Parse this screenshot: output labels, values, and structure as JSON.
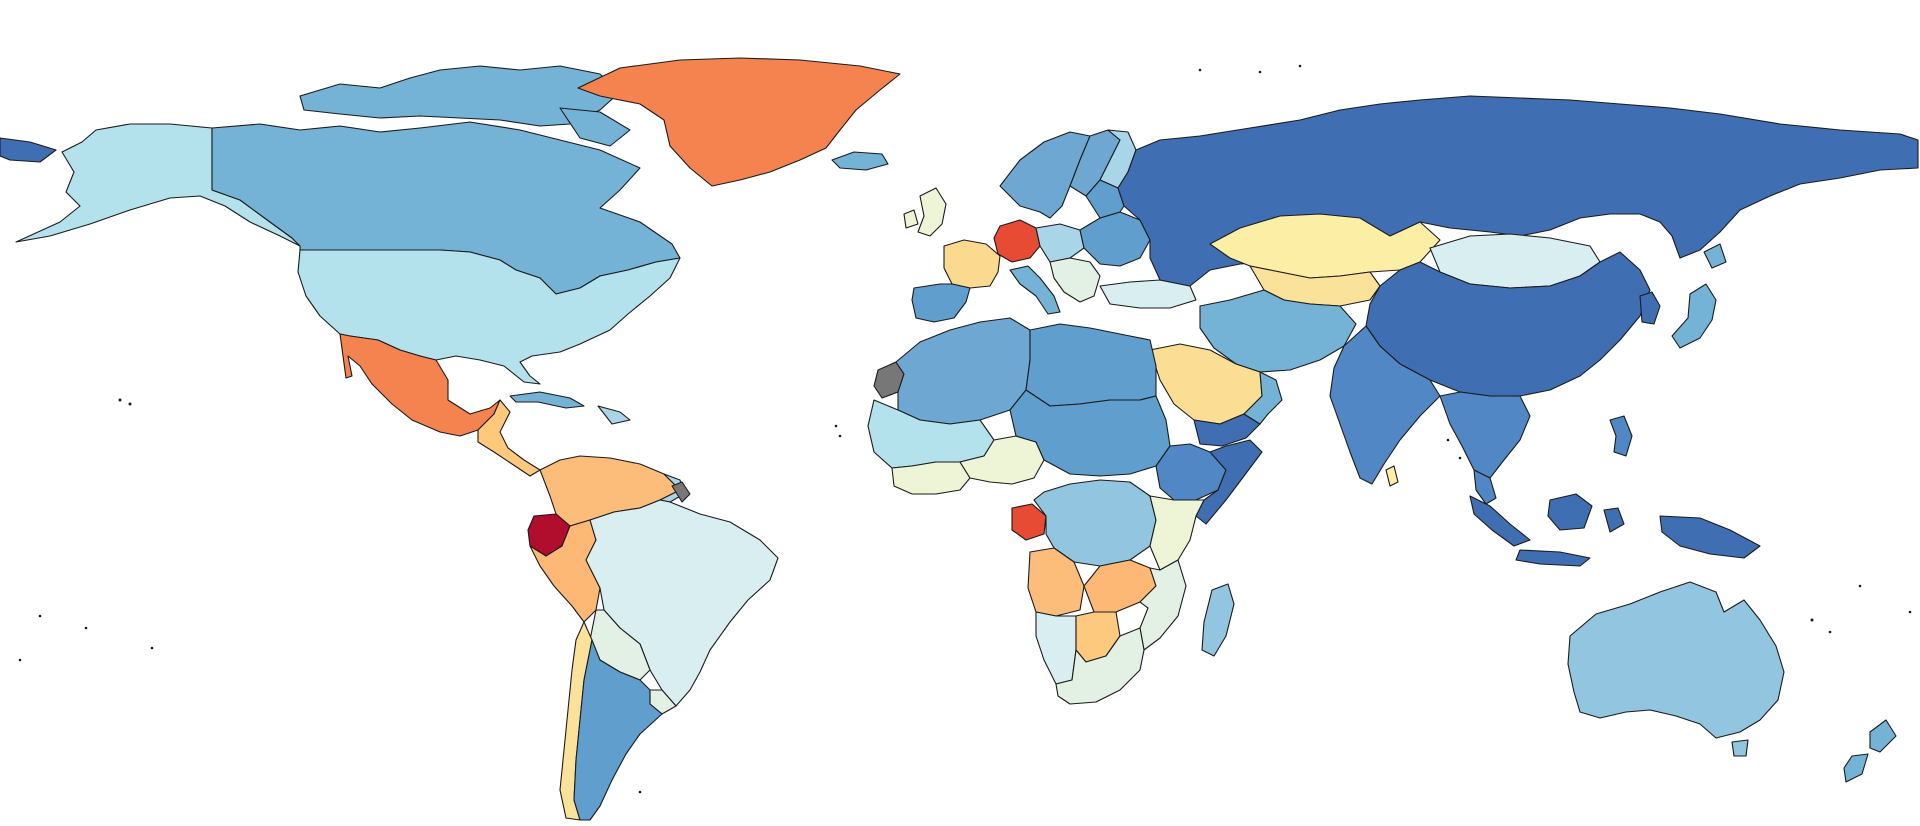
{
  "map": {
    "regions": [
      {
        "name": "alaska",
        "color": "#b3e2ec"
      },
      {
        "name": "canada",
        "color": "#74b3d6"
      },
      {
        "name": "arctic-islands",
        "color": "#74b3d6"
      },
      {
        "name": "greenland",
        "color": "#f4834f"
      },
      {
        "name": "united-states",
        "color": "#b3e2ec"
      },
      {
        "name": "mexico",
        "color": "#f4834f"
      },
      {
        "name": "central-america",
        "color": "#fec97b"
      },
      {
        "name": "cuba",
        "color": "#74b3d6"
      },
      {
        "name": "colombia-venezuela",
        "color": "#fdbd7a"
      },
      {
        "name": "guyana-suriname",
        "color": "#a8d5e8"
      },
      {
        "name": "ecuador",
        "color": "#b10d2c"
      },
      {
        "name": "peru",
        "color": "#fdb876"
      },
      {
        "name": "brazil",
        "color": "#d8eef0"
      },
      {
        "name": "bolivia-paraguay",
        "color": "#e2f1e4"
      },
      {
        "name": "chile",
        "color": "#fbe29a"
      },
      {
        "name": "argentina",
        "color": "#5f9ecd"
      },
      {
        "name": "uruguay",
        "color": "#e2f1e4"
      },
      {
        "name": "iceland",
        "color": "#74b3d6"
      },
      {
        "name": "scandinavia",
        "color": "#6ea8d2"
      },
      {
        "name": "finland",
        "color": "#a8d5e8"
      },
      {
        "name": "united-kingdom",
        "color": "#eef5d6"
      },
      {
        "name": "france",
        "color": "#fbd98f"
      },
      {
        "name": "iberia",
        "color": "#5f9ecd"
      },
      {
        "name": "germany",
        "color": "#e74b34"
      },
      {
        "name": "central-europe",
        "color": "#a8d5e8"
      },
      {
        "name": "italy",
        "color": "#74b3d6"
      },
      {
        "name": "balkans",
        "color": "#e2f1e4"
      },
      {
        "name": "eastern-europe",
        "color": "#5f9ecd"
      },
      {
        "name": "turkey",
        "color": "#d8eef0"
      },
      {
        "name": "russia",
        "color": "#3f6fb2"
      },
      {
        "name": "kazakhstan",
        "color": "#fdeea6"
      },
      {
        "name": "central-asia",
        "color": "#fbe29a"
      },
      {
        "name": "mongolia",
        "color": "#d8eef0"
      },
      {
        "name": "china",
        "color": "#3f6fb2"
      },
      {
        "name": "korea",
        "color": "#3f6fb2"
      },
      {
        "name": "japan",
        "color": "#74b3d6"
      },
      {
        "name": "iran-afghanistan",
        "color": "#74b3d6"
      },
      {
        "name": "saudi-arabia",
        "color": "#fbde93"
      },
      {
        "name": "yemen",
        "color": "#3f6fb2"
      },
      {
        "name": "oman-gulf",
        "color": "#74b3d6"
      },
      {
        "name": "india",
        "color": "#5187c4"
      },
      {
        "name": "sri-lanka",
        "color": "#fdeea6"
      },
      {
        "name": "southeast-asia",
        "color": "#5187c4"
      },
      {
        "name": "indonesia",
        "color": "#3f6fb2"
      },
      {
        "name": "philippines",
        "color": "#5187c4"
      },
      {
        "name": "papua-new-guinea",
        "color": "#3f6fb2"
      },
      {
        "name": "australia",
        "color": "#92c6e0"
      },
      {
        "name": "new-zealand",
        "color": "#74b3d6"
      },
      {
        "name": "western-sahara",
        "color": "#777777"
      },
      {
        "name": "north-africa",
        "color": "#6ea8d2"
      },
      {
        "name": "libya-egypt",
        "color": "#5f9ecd"
      },
      {
        "name": "west-africa",
        "color": "#b3e2ec"
      },
      {
        "name": "west-africa-coast",
        "color": "#eef5d6"
      },
      {
        "name": "nigeria",
        "color": "#eef5d6"
      },
      {
        "name": "chad-sudan",
        "color": "#5f9ecd"
      },
      {
        "name": "ethiopia",
        "color": "#5187c4"
      },
      {
        "name": "somalia",
        "color": "#3f6fb2"
      },
      {
        "name": "gabon",
        "color": "#e74b34"
      },
      {
        "name": "congo",
        "color": "#92c6e0"
      },
      {
        "name": "east-africa",
        "color": "#eef5d6"
      },
      {
        "name": "angola",
        "color": "#fdbd7a"
      },
      {
        "name": "zambia",
        "color": "#fdb876"
      },
      {
        "name": "namibia",
        "color": "#d8eef0"
      },
      {
        "name": "botswana",
        "color": "#fdc97e"
      },
      {
        "name": "south-africa",
        "color": "#e2f1e4"
      },
      {
        "name": "mozambique",
        "color": "#e2f1e4"
      },
      {
        "name": "madagascar",
        "color": "#92c6e0"
      }
    ]
  }
}
